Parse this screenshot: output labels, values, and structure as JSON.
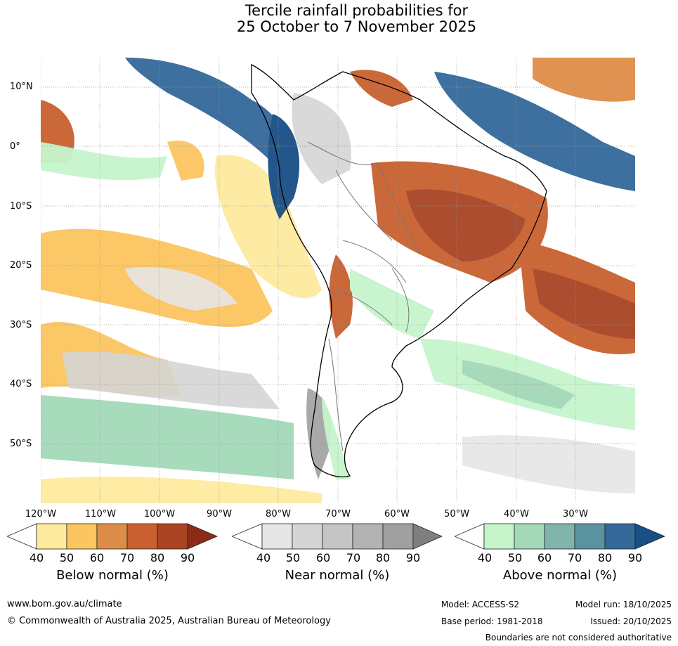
{
  "title": {
    "line1": "Tercile rainfall probabilities for",
    "line2": "25 October to 7 November 2025"
  },
  "map": {
    "lat_labels": [
      "10°N",
      "0°",
      "10°S",
      "20°S",
      "30°S",
      "40°S",
      "50°S"
    ],
    "lon_labels": [
      "120°W",
      "110°W",
      "100°W",
      "90°W",
      "80°W",
      "70°W",
      "60°W",
      "50°W",
      "40°W",
      "30°W"
    ],
    "region": "South America and surrounding oceans"
  },
  "legends": [
    {
      "title": "Below normal (%)",
      "ticks": [
        "40",
        "50",
        "60",
        "70",
        "80",
        "90"
      ],
      "colors": [
        "#ffffff",
        "#feea9f",
        "#fbc55f",
        "#de8d48",
        "#c8602f",
        "#a84424",
        "#8a2c17"
      ]
    },
    {
      "title": "Near normal (%)",
      "ticks": [
        "40",
        "50",
        "60",
        "70",
        "80",
        "90"
      ],
      "colors": [
        "#ffffff",
        "#e6e6e6",
        "#d5d5d5",
        "#c5c5c5",
        "#b3b3b3",
        "#a0a0a0",
        "#7f7f7f"
      ]
    },
    {
      "title": "Above normal (%)",
      "ticks": [
        "40",
        "50",
        "60",
        "70",
        "80",
        "90"
      ],
      "colors": [
        "#ffffff",
        "#c6f5cc",
        "#a3d8b8",
        "#7fb5ab",
        "#5b92a0",
        "#336899",
        "#184f85"
      ]
    }
  ],
  "footer": {
    "website": "www.bom.gov.au/climate",
    "copyright": "© Commonwealth of Australia 2025, Australian Bureau of Meteorology",
    "model": "Model: ACCESS-S2",
    "base_period": "Base period: 1981-2018",
    "model_run": "Model run: 18/10/2025",
    "issued": "Issued: 20/10/2025",
    "disclaimer": "Boundaries are not considered authoritative"
  }
}
